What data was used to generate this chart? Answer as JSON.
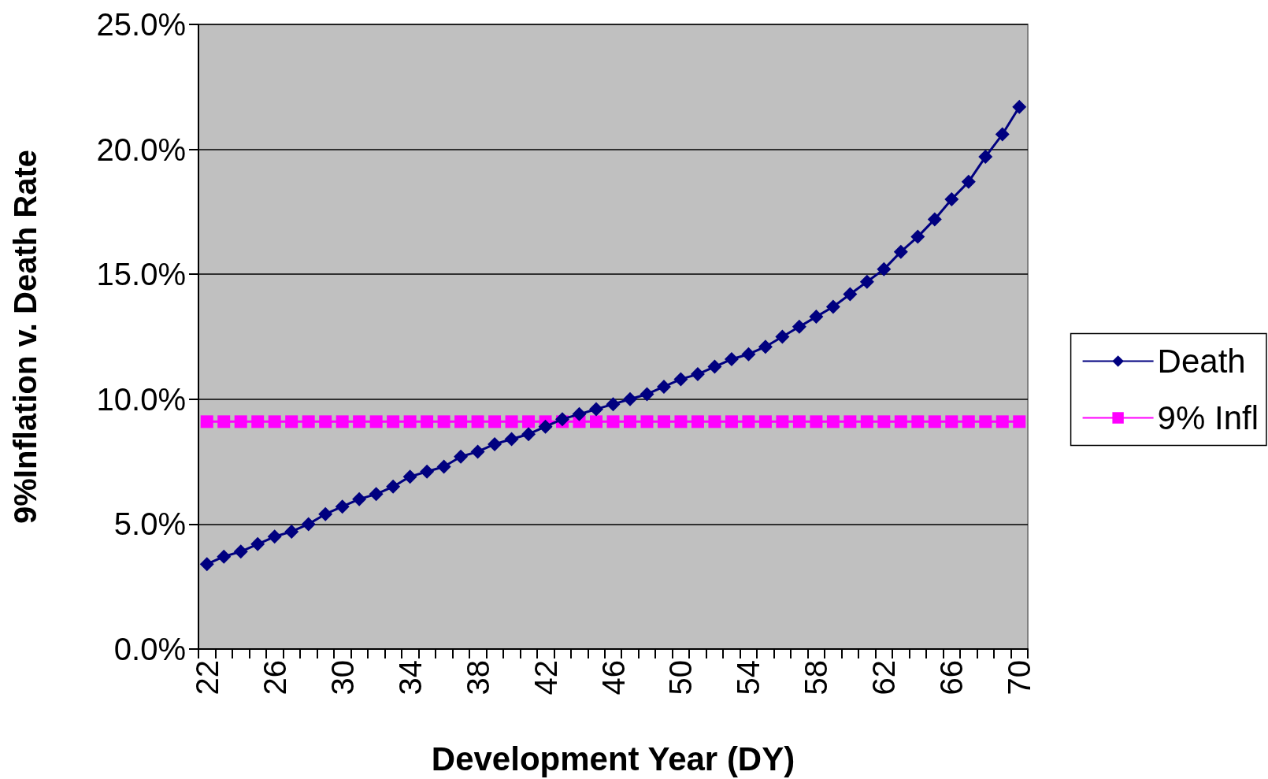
{
  "chart_data": {
    "type": "line",
    "xlabel": "Development Year (DY)",
    "ylabel": "9%Inflation v. Death Rate",
    "categories": [
      "22",
      null,
      null,
      null,
      "26",
      null,
      null,
      null,
      "30",
      null,
      null,
      null,
      "34",
      null,
      null,
      null,
      "38",
      null,
      null,
      null,
      "42",
      null,
      null,
      null,
      "46",
      null,
      null,
      null,
      "50",
      null,
      null,
      null,
      "54",
      null,
      null,
      null,
      "58",
      null,
      null,
      null,
      "62",
      null,
      null,
      null,
      "66",
      null,
      null,
      null,
      "70"
    ],
    "series": [
      {
        "name": "Death",
        "color": "#000080",
        "marker": "diamond",
        "values": [
          3.4,
          3.7,
          3.9,
          4.2,
          4.5,
          4.7,
          5.0,
          5.4,
          5.7,
          6.0,
          6.2,
          6.5,
          6.9,
          7.1,
          7.3,
          7.7,
          7.9,
          8.2,
          8.4,
          8.6,
          8.9,
          9.2,
          9.4,
          9.6,
          9.8,
          10.0,
          10.2,
          10.5,
          10.8,
          11.0,
          11.3,
          11.6,
          11.8,
          12.1,
          12.5,
          12.9,
          13.3,
          13.7,
          14.2,
          14.7,
          15.2,
          15.9,
          16.5,
          17.2,
          18.0,
          18.7,
          19.7,
          20.6,
          21.7
        ]
      },
      {
        "name": "9% Infl",
        "color": "#ff00ff",
        "marker": "square",
        "values": [
          9.1,
          9.1,
          9.1,
          9.1,
          9.1,
          9.1,
          9.1,
          9.1,
          9.1,
          9.1,
          9.1,
          9.1,
          9.1,
          9.1,
          9.1,
          9.1,
          9.1,
          9.1,
          9.1,
          9.1,
          9.1,
          9.1,
          9.1,
          9.1,
          9.1,
          9.1,
          9.1,
          9.1,
          9.1,
          9.1,
          9.1,
          9.1,
          9.1,
          9.1,
          9.1,
          9.1,
          9.1,
          9.1,
          9.1,
          9.1,
          9.1,
          9.1,
          9.1,
          9.1,
          9.1,
          9.1,
          9.1,
          9.1,
          9.1
        ]
      }
    ],
    "ylim": [
      0,
      25
    ],
    "yticks": [
      {
        "value": 0,
        "label": "0.0%"
      },
      {
        "value": 5,
        "label": "5.0%"
      },
      {
        "value": 10,
        "label": "10.0%"
      },
      {
        "value": 15,
        "label": "15.0%"
      },
      {
        "value": 20,
        "label": "20.0%"
      },
      {
        "value": 25,
        "label": "25.0%"
      }
    ],
    "grid": "y",
    "legend": "right",
    "line_style": "solid"
  }
}
